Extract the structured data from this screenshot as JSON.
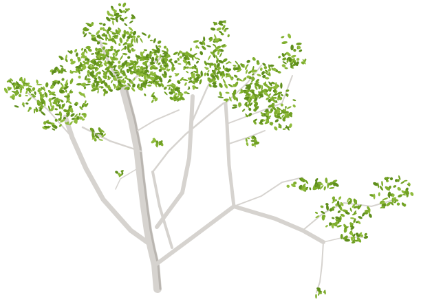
{
  "scene": {
    "subject": "tree-render",
    "background_color": "#ffffff",
    "bark_color": "#d6d3cf",
    "bark_shadow_color": "#b9b5b0",
    "leaf_colors": [
      "#7fae2e",
      "#6f9f22",
      "#8fbb3c",
      "#5f8e1c"
    ]
  }
}
